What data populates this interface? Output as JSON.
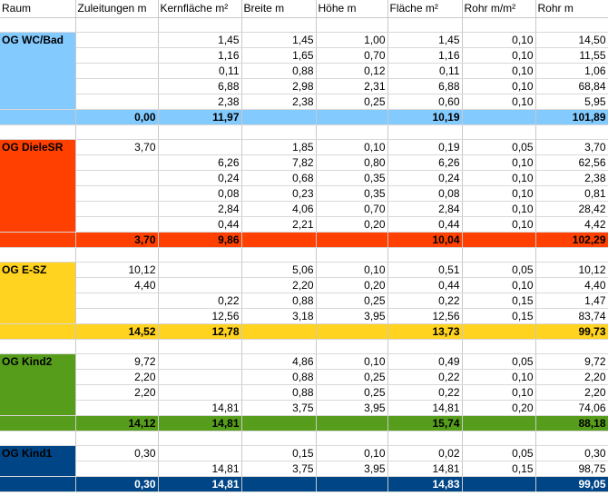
{
  "headers": [
    "Raum",
    "Zuleitungen m",
    "Kernfläche m²",
    "Breite m",
    "Höhe m",
    "Fläche m²",
    "Rohr m/m²",
    "Rohr m"
  ],
  "groups": [
    {
      "name": "OG WC/Bad",
      "color": "#83caff",
      "sum_text_color": "#000000",
      "rows": [
        [
          "",
          "1,45",
          "1,45",
          "1,00",
          "1,45",
          "0,10",
          "14,50"
        ],
        [
          "",
          "1,16",
          "1,65",
          "0,70",
          "1,16",
          "0,10",
          "11,55"
        ],
        [
          "",
          "0,11",
          "0,88",
          "0,12",
          "0,11",
          "0,10",
          "1,06"
        ],
        [
          "",
          "6,88",
          "2,98",
          "2,31",
          "6,88",
          "0,10",
          "68,84"
        ],
        [
          "",
          "2,38",
          "2,38",
          "0,25",
          "0,60",
          "0,10",
          "5,95"
        ]
      ],
      "sum": [
        "0,00",
        "11,97",
        "",
        "",
        "10,19",
        "",
        "101,89"
      ]
    },
    {
      "name": "OG DieleSR",
      "color": "#ff4000",
      "sum_text_color": "#000000",
      "rows": [
        [
          "3,70",
          "",
          "1,85",
          "0,10",
          "0,19",
          "0,05",
          "3,70"
        ],
        [
          "",
          "6,26",
          "7,82",
          "0,80",
          "6,26",
          "0,10",
          "62,56"
        ],
        [
          "",
          "0,24",
          "0,68",
          "0,35",
          "0,24",
          "0,10",
          "2,38"
        ],
        [
          "",
          "0,08",
          "0,23",
          "0,35",
          "0,08",
          "0,10",
          "0,81"
        ],
        [
          "",
          "2,84",
          "4,06",
          "0,70",
          "2,84",
          "0,10",
          "28,42"
        ],
        [
          "",
          "0,44",
          "2,21",
          "0,20",
          "0,44",
          "0,10",
          "4,42"
        ]
      ],
      "sum": [
        "3,70",
        "9,86",
        "",
        "",
        "10,04",
        "",
        "102,29"
      ]
    },
    {
      "name": "OG E-SZ",
      "color": "#ffd320",
      "sum_text_color": "#000000",
      "rows": [
        [
          "10,12",
          "",
          "5,06",
          "0,10",
          "0,51",
          "0,05",
          "10,12"
        ],
        [
          "4,40",
          "",
          "2,20",
          "0,20",
          "0,44",
          "0,10",
          "4,40"
        ],
        [
          "",
          "0,22",
          "0,88",
          "0,25",
          "0,22",
          "0,15",
          "1,47"
        ],
        [
          "",
          "12,56",
          "3,18",
          "3,95",
          "12,56",
          "0,15",
          "83,74"
        ]
      ],
      "sum": [
        "14,52",
        "12,78",
        "",
        "",
        "13,73",
        "",
        "99,73"
      ]
    },
    {
      "name": "OG Kind2",
      "color": "#579d1c",
      "sum_text_color": "#000000",
      "rows": [
        [
          "9,72",
          "",
          "4,86",
          "0,10",
          "0,49",
          "0,05",
          "9,72"
        ],
        [
          "2,20",
          "",
          "0,88",
          "0,25",
          "0,22",
          "0,10",
          "2,20"
        ],
        [
          "2,20",
          "",
          "0,88",
          "0,25",
          "0,22",
          "0,10",
          "2,20"
        ],
        [
          "",
          "14,81",
          "3,75",
          "3,95",
          "14,81",
          "0,20",
          "74,06"
        ]
      ],
      "sum": [
        "14,12",
        "14,81",
        "",
        "",
        "15,74",
        "",
        "88,18"
      ]
    },
    {
      "name": "OG Kind1",
      "color": "#004586",
      "sum_text_color": "#ffffff",
      "rows": [
        [
          "0,30",
          "",
          "0,15",
          "0,10",
          "0,02",
          "0,05",
          "0,30"
        ],
        [
          "",
          "14,81",
          "3,75",
          "3,95",
          "14,81",
          "0,15",
          "98,75"
        ]
      ],
      "sum": [
        "0,30",
        "14,81",
        "",
        "",
        "14,83",
        "",
        "99,05"
      ]
    }
  ]
}
